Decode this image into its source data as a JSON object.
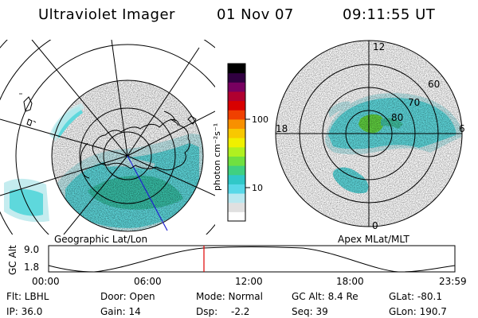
{
  "header": {
    "title": "Ultraviolet Imager",
    "date": "01 Nov 07",
    "time": "09:11:55 UT"
  },
  "colorbar": {
    "label": "photon cm⁻²s⁻¹",
    "ticks": [
      "100",
      "10"
    ],
    "colors": [
      "#ffffff",
      "#e0e0e0",
      "#b8e8f0",
      "#58d8e8",
      "#30c8c8",
      "#40d080",
      "#70e040",
      "#b0f020",
      "#f0f000",
      "#f8c800",
      "#f89000",
      "#f04000",
      "#d80000",
      "#b00030",
      "#780060",
      "#300040",
      "#000000"
    ]
  },
  "geo_panel": {
    "caption": "Geographic Lat/Lon"
  },
  "apex_panel": {
    "caption": "Apex MLat/MLT",
    "mlt_labels": {
      "top": "12",
      "right": "6",
      "bottom": "0",
      "left": "18"
    },
    "lat_labels": [
      "60",
      "70",
      "80"
    ]
  },
  "altitude_strip": {
    "axis_label": "GC Alt",
    "yticks": [
      "9.0",
      "1.8"
    ],
    "xticks": [
      "00:00",
      "06:00",
      "12:00",
      "18:00",
      "23:59"
    ]
  },
  "info": {
    "flt": "Flt: LBHL",
    "ip": "IP: 36.0",
    "door": "Door: Open",
    "gain": "Gain: 14",
    "mode": "Mode: Normal",
    "dsp": "Dsp:",
    "dsp_value": "-2.2",
    "gc_alt": "GC Alt: 8.4 Re",
    "seq": "Seq: 39",
    "glat": "GLat: -80.1",
    "glon": "GLon: 190.7"
  },
  "colors": {
    "aurora_main": "#5ed8dc",
    "aurora_faint": "#c4ecef",
    "aurora_bright": "#38c0a8",
    "aurora_green": "#60d040",
    "marker": "#e00000",
    "meridian": "#2020d0"
  }
}
